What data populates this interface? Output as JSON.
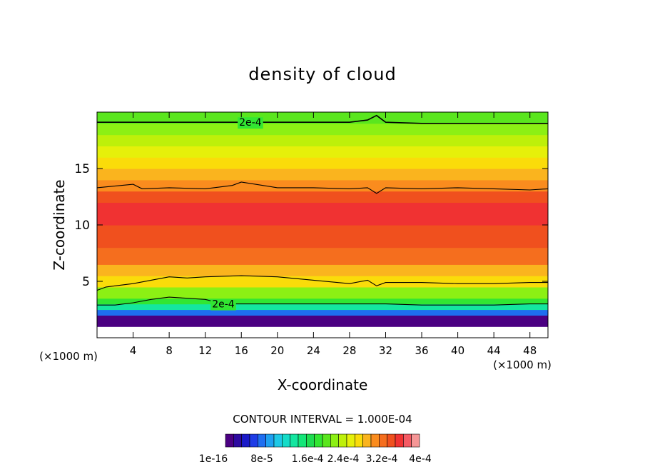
{
  "chart_data": {
    "type": "heatmap",
    "title": "density of cloud",
    "xlabel": "X-coordinate",
    "ylabel": "Z-coordinate",
    "x_unit": "(×1000 m)",
    "z_unit": "(×1000 m)",
    "xlim": [
      0,
      50
    ],
    "ylim": [
      0,
      20
    ],
    "x_ticks": [
      4,
      8,
      12,
      16,
      20,
      24,
      28,
      32,
      36,
      40,
      44,
      48
    ],
    "y_ticks": [
      5,
      10,
      15
    ],
    "contour_interval_text": "CONTOUR INTERVAL = 1.000E-04",
    "contour_labels": [
      {
        "text": "2e-4",
        "x": 17,
        "z": 19.1
      },
      {
        "text": "2e-4",
        "x": 14,
        "z": 3.0
      }
    ],
    "colorbar": {
      "levels": 24,
      "min": 1e-16,
      "max": 0.0004,
      "tick_labels": [
        "1e-16",
        "8e-5",
        "1.6e-4",
        "2.4e-4",
        "3.2e-4",
        "4e-4"
      ],
      "colors": [
        "#4b0082",
        "#2e0aa0",
        "#1a1ac8",
        "#1e3ce6",
        "#1e6ef0",
        "#1ea0f0",
        "#1ec8e6",
        "#14dcc8",
        "#14e6a0",
        "#14e678",
        "#1edc50",
        "#32e632",
        "#5ae61e",
        "#8cf014",
        "#bef00a",
        "#e6f00a",
        "#fadc0a",
        "#fab41e",
        "#fa8c1e",
        "#f56e1e",
        "#f0501e",
        "#f03232",
        "#f55a64",
        "#f59696"
      ]
    },
    "profile_z": [
      1.0,
      1.4,
      2.0,
      2.5,
      3.0,
      3.5,
      4.5,
      5.5,
      6.5,
      8.0,
      10.0,
      12.0,
      13.0,
      14.0,
      15.0,
      16.0,
      17.0,
      18.0,
      19.0,
      20.0
    ],
    "profile_val": [
      1e-16,
      1.5e-05,
      8e-05,
      0.00014,
      0.00019,
      0.00023,
      0.00027,
      0.000295,
      0.00032,
      0.00035,
      0.000355,
      0.00034,
      0.00031,
      0.00029,
      0.00028,
      0.00026,
      0.000245,
      0.000225,
      0.000205,
      0.00019
    ],
    "contours": [
      {
        "value": 0.0002,
        "x": [
          0,
          4,
          8,
          12,
          16,
          20,
          24,
          28,
          30,
          31,
          32,
          36,
          40,
          44,
          48,
          50
        ],
        "z": [
          19.1,
          19.1,
          19.1,
          19.1,
          19.1,
          19.1,
          19.1,
          19.1,
          19.3,
          19.7,
          19.1,
          19.0,
          19.0,
          19.0,
          19.0,
          19.0
        ]
      },
      {
        "value": 0.0003,
        "x": [
          0,
          4,
          5,
          8,
          12,
          15,
          16,
          20,
          24,
          28,
          30,
          31,
          32,
          36,
          40,
          44,
          48,
          50
        ],
        "z": [
          13.3,
          13.6,
          13.2,
          13.3,
          13.2,
          13.5,
          13.8,
          13.3,
          13.3,
          13.2,
          13.3,
          12.8,
          13.3,
          13.2,
          13.3,
          13.2,
          13.1,
          13.2
        ]
      },
      {
        "value": 0.0003,
        "x": [
          0,
          1,
          2,
          4,
          6,
          8,
          10,
          12,
          16,
          20,
          24,
          28,
          30,
          31,
          32,
          36,
          40,
          44,
          48,
          50
        ],
        "z": [
          4.2,
          4.5,
          4.6,
          4.8,
          5.1,
          5.4,
          5.3,
          5.4,
          5.5,
          5.4,
          5.1,
          4.8,
          5.1,
          4.6,
          4.9,
          4.9,
          4.8,
          4.8,
          4.9,
          4.9
        ]
      },
      {
        "value": 0.0002,
        "x": [
          0,
          2,
          4,
          6,
          8,
          10,
          12,
          14,
          16,
          20,
          24,
          28,
          32,
          36,
          40,
          44,
          48,
          50
        ],
        "z": [
          2.9,
          2.9,
          3.1,
          3.4,
          3.6,
          3.5,
          3.4,
          3.0,
          3.0,
          3.0,
          3.0,
          3.0,
          3.0,
          2.9,
          2.9,
          2.9,
          3.0,
          3.0
        ]
      }
    ]
  }
}
